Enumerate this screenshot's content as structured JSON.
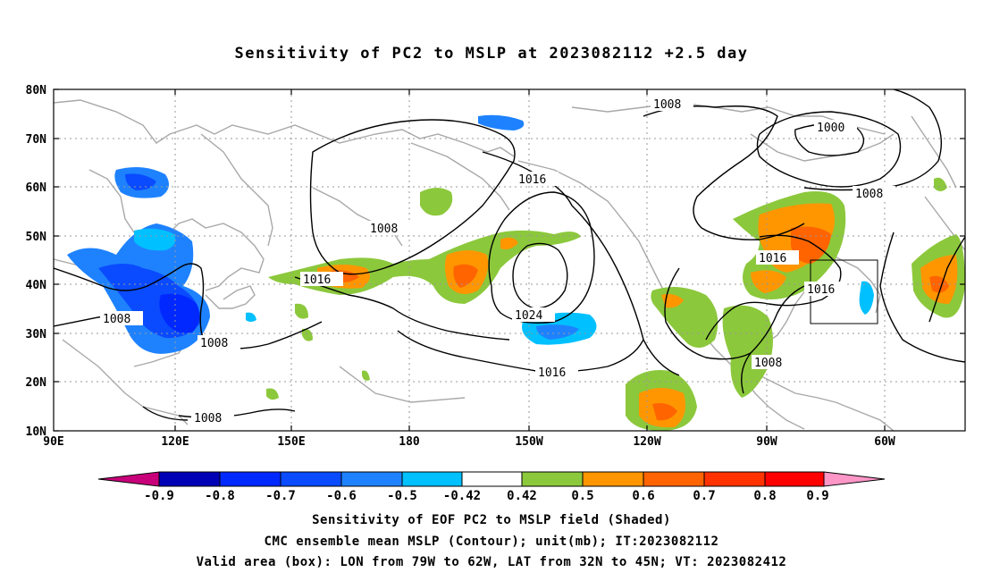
{
  "title": "Sensitivity of PC2 to MSLP at 2023082112 +2.5 day",
  "map": {
    "lat_labels": [
      "80N",
      "70N",
      "60N",
      "50N",
      "40N",
      "30N",
      "20N",
      "10N"
    ],
    "lon_labels": [
      "90E",
      "120E",
      "150E",
      "180",
      "150W",
      "120W",
      "90W",
      "60W"
    ],
    "contour_labels": [
      "1008",
      "1000",
      "1008",
      "1016",
      "1008",
      "1016",
      "1024",
      "1016",
      "1016",
      "1016",
      "1008",
      "1008",
      "1008",
      "1008"
    ],
    "valid_box": {
      "lon_min": "79W",
      "lon_max": "62W",
      "lat_min": "32N",
      "lat_max": "45N"
    }
  },
  "colorbar": {
    "labels": [
      "-0.9",
      "-0.8",
      "-0.7",
      "-0.6",
      "-0.5",
      "-0.42",
      "0.42",
      "0.5",
      "0.6",
      "0.7",
      "0.8",
      "0.9"
    ],
    "colors": [
      "#c8007a",
      "#0000b4",
      "#0028ff",
      "#0a4bff",
      "#1e82ff",
      "#00c0ff",
      "#ffffff",
      "#8cc83c",
      "#ff9600",
      "#ff6400",
      "#ff3200",
      "#ff0000",
      "#ff96c8"
    ]
  },
  "captions": {
    "line1": "Sensitivity of EOF PC2 to MSLP field (Shaded)",
    "line2": "CMC ensemble mean MSLP (Contour); unit(mb); IT:2023082112",
    "line3": "Valid area (box): LON from 79W to 62W, LAT from 32N to 45N; VT: 2023082412"
  }
}
